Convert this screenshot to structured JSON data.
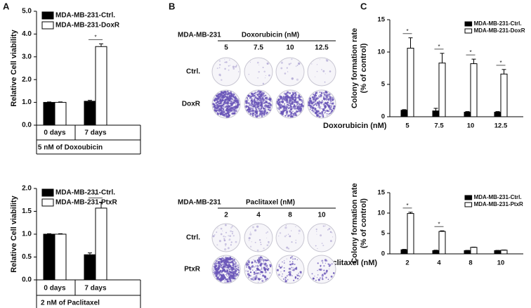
{
  "panel_labels": [
    "A",
    "B",
    "C"
  ],
  "chart_data": [
    {
      "type": "bar",
      "ylabel": "Relative Cell viability",
      "xlabel": "5 nM of Doxoubicin",
      "categories": [
        "0 days",
        "7 days"
      ],
      "series": [
        {
          "name": "MDA-MB-231-Ctrl.",
          "color": "#000000",
          "values": [
            1.0,
            1.05
          ],
          "errors": [
            0.02,
            0.04
          ]
        },
        {
          "name": "MDA-MB-231-DoxR",
          "color": "#ffffff",
          "values": [
            1.0,
            3.45
          ],
          "errors": [
            0.02,
            0.12
          ]
        }
      ],
      "annotations": [
        null,
        "*"
      ],
      "ylim": [
        0,
        5
      ],
      "yticks": [
        {
          "value": 0,
          "label": "0.0"
        },
        {
          "value": 1,
          "label": "1.0"
        },
        {
          "value": 2,
          "label": "2.0"
        },
        {
          "value": 3,
          "label": "3.0"
        },
        {
          "value": 4,
          "label": "4.0"
        },
        {
          "value": 5,
          "label": "5.0"
        }
      ],
      "grid": false
    },
    {
      "type": "bar",
      "ylabel": "Relative Cell viability",
      "xlabel": "2 nM of Paclitaxel",
      "categories": [
        "0 days",
        "7 days"
      ],
      "series": [
        {
          "name": "MDA-MB-231-Ctrl.",
          "color": "#000000",
          "values": [
            1.0,
            0.55
          ],
          "errors": [
            0.01,
            0.04
          ]
        },
        {
          "name": "MDA-MB-231-PtxR",
          "color": "#ffffff",
          "values": [
            1.0,
            1.57
          ],
          "errors": [
            0.01,
            0.13
          ]
        }
      ],
      "annotations": [
        null,
        "*"
      ],
      "ylim": [
        0,
        2
      ],
      "yticks": [
        {
          "value": 0,
          "label": "0.0"
        },
        {
          "value": 0.5,
          "label": "0.5"
        },
        {
          "value": 1,
          "label": "1.0"
        },
        {
          "value": 1.5,
          "label": "1.5"
        },
        {
          "value": 2,
          "label": "2.0"
        }
      ],
      "grid": false
    },
    {
      "type": "bar",
      "ylabel": [
        "Colony formation rate",
        "(% of control)"
      ],
      "xlabel": "Doxorubicin (nM)",
      "categories": [
        "5",
        "7.5",
        "10",
        "12.5"
      ],
      "series": [
        {
          "name": "MDA-MB-231-Ctrl.",
          "color": "#000000",
          "values": [
            1.0,
            0.9,
            0.7,
            0.7
          ],
          "errors": [
            0.1,
            0.4,
            0.1,
            0.1
          ]
        },
        {
          "name": "MDA-MB-231-DoxR",
          "color": "#ffffff",
          "values": [
            10.6,
            8.3,
            8.2,
            6.6
          ],
          "errors": [
            1.6,
            1.5,
            0.7,
            0.7
          ]
        }
      ],
      "annotations": [
        "*",
        "*",
        "*",
        "*"
      ],
      "ylim": [
        0,
        15
      ],
      "yticks": [
        0,
        5,
        10,
        15
      ],
      "grid": false
    },
    {
      "type": "bar",
      "ylabel": [
        "Colony formation rate",
        "(% of control)"
      ],
      "xlabel": "Paclitaxel (nM)",
      "categories": [
        "2",
        "4",
        "8",
        "10"
      ],
      "series": [
        {
          "name": "MDA-MB-231-Ctrl.",
          "color": "#000000",
          "values": [
            1.0,
            0.8,
            0.8,
            0.8
          ],
          "errors": [
            0.1,
            0.1,
            0.05,
            0.05
          ]
        },
        {
          "name": "MDA-MB-231-PtxR",
          "color": "#ffffff",
          "values": [
            9.9,
            5.5,
            1.6,
            0.9
          ],
          "errors": [
            0.3,
            0.15,
            0.05,
            0.05
          ]
        }
      ],
      "annotations": [
        "*",
        "*",
        null,
        null
      ],
      "ylim": [
        0,
        15
      ],
      "yticks": [
        0,
        5,
        10,
        15
      ],
      "grid": false
    }
  ],
  "plates": [
    {
      "cell_line": "MDA-MB-231",
      "drug": "Doxorubicin (nM)",
      "doses": [
        "5",
        "7.5",
        "10",
        "12.5"
      ],
      "rows": [
        "Ctrl.",
        "DoxR"
      ]
    },
    {
      "cell_line": "MDA-MB-231",
      "drug": "Paclitaxel (nM)",
      "doses": [
        "2",
        "4",
        "8",
        "10"
      ],
      "rows": [
        "Ctrl.",
        "PtxR"
      ]
    }
  ]
}
